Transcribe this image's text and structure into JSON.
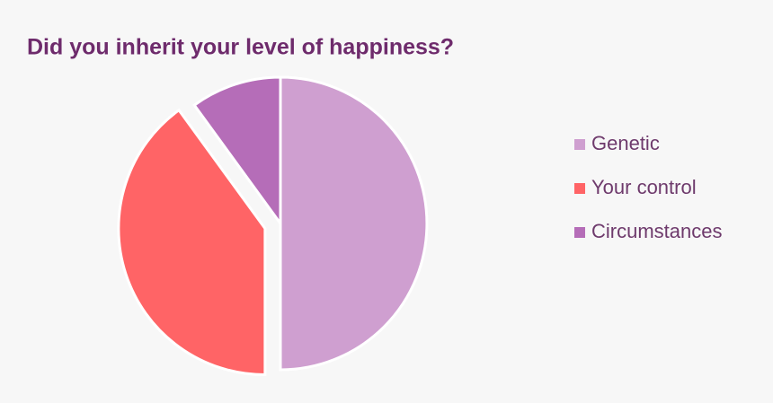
{
  "chart_data": {
    "type": "pie",
    "title": "Did you inherit your level of happiness?",
    "categories": [
      "Genetic",
      "Your control",
      "Circumstances"
    ],
    "values": [
      50,
      40,
      10
    ],
    "colors": [
      "#cf9fd0",
      "#ff6466",
      "#b56db8"
    ],
    "exploded": [
      false,
      true,
      false
    ],
    "legend": "right"
  }
}
